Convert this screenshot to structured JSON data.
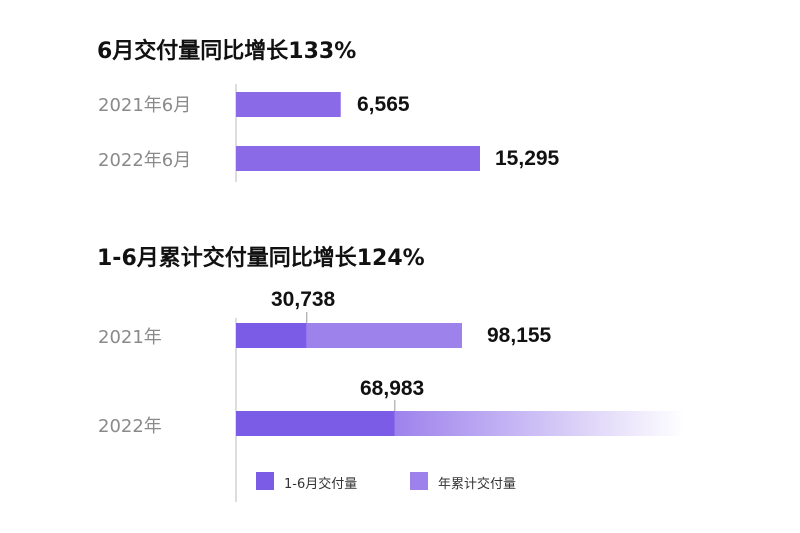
{
  "chart_data": [
    {
      "type": "bar",
      "orientation": "horizontal",
      "title": "6月交付量同比增长133%",
      "categories": [
        "2021年6月",
        "2022年6月"
      ],
      "values": [
        6565,
        15295
      ],
      "value_labels": [
        "6,565",
        "15,295"
      ],
      "color": "#8b6ae8"
    },
    {
      "type": "bar",
      "orientation": "horizontal",
      "stacked": true,
      "title": "1-6月累计交付量同比增长124%",
      "categories": [
        "2021年",
        "2022年"
      ],
      "series": [
        {
          "name": "1-6月交付量",
          "values": [
            30738,
            68983
          ],
          "labels": [
            "30,738",
            "68,983"
          ],
          "color": "#7b5ce6"
        },
        {
          "name": "年累计交付量",
          "values": [
            98155,
            null
          ],
          "labels": [
            "98,155",
            ""
          ],
          "color": "#9d82ec"
        }
      ],
      "legend": "bottom",
      "note": ""
    }
  ]
}
